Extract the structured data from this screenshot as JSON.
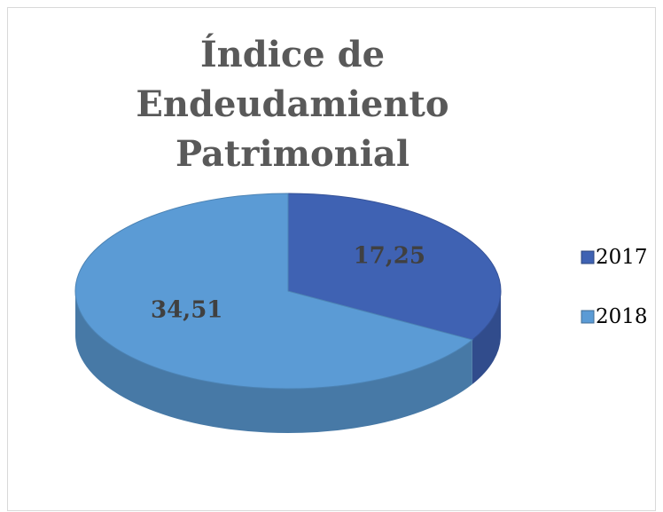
{
  "chart_data": {
    "type": "pie",
    "title": "Índice de Endeudamiento Patrimonial",
    "categories": [
      "2017",
      "2018"
    ],
    "values": [
      17.25,
      34.51
    ],
    "value_labels": [
      "17,25",
      "34,51"
    ],
    "colors": [
      "#3f62b3",
      "#5b9bd5"
    ],
    "legend": "right"
  }
}
